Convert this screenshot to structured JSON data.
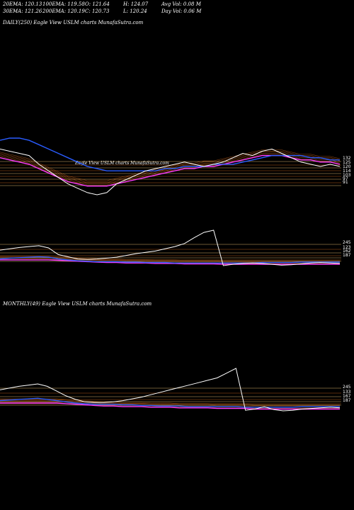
{
  "header": {
    "row1": [
      "20EMA: 120.13",
      "100EMA: 119.58",
      "O: 121.64",
      "H: 124.07",
      "Avg Vol: 0.08  M"
    ],
    "row2": [
      "30EMA: 121.26",
      "200EMA: 120.19",
      "C: 120.73",
      "L: 120.24",
      "Day Vol: 0.06  M"
    ]
  },
  "captions": {
    "daily": "DAILY(250) Eagle   View  USLM charts MunafaSutra.com",
    "overlay": "Eagle   View  USLM charts MunafaSutra.com",
    "monthly": "MONTHLY(49) Eagle   View  USLM charts MunafaSutra.com"
  },
  "colors": {
    "price": "#ffffff",
    "ema_fast": "#2a5cff",
    "ema_slow": "#ff3cff",
    "band": "#d2691e",
    "level_line": "#ffd27f",
    "background": "#000000"
  },
  "chart_data": [
    {
      "type": "line",
      "title": "DAILY(250) Eagle View USLM charts MunafaSutra.com",
      "right_tick_labels": [
        "132",
        "125",
        "120",
        "114",
        "103",
        "97",
        "91"
      ],
      "series": [
        {
          "values": [
            128,
            127,
            126,
            125,
            121,
            118,
            115,
            112,
            110,
            108,
            107,
            108,
            112,
            114,
            116,
            118,
            119,
            120,
            121,
            122,
            121,
            120,
            121,
            122,
            124,
            126,
            125,
            127,
            128,
            126,
            124,
            122,
            121,
            120,
            121,
            120
          ]
        },
        {
          "values": [
            132,
            133,
            133,
            132,
            130,
            128,
            126,
            124,
            122,
            120,
            119,
            118,
            118,
            118,
            118,
            118,
            118,
            119,
            119,
            120,
            120,
            120,
            121,
            121,
            121,
            122,
            123,
            124,
            125,
            125,
            125,
            125,
            124,
            124,
            123,
            123
          ]
        },
        {
          "values": [
            124,
            123,
            122,
            121,
            119,
            117,
            115,
            113,
            112,
            111,
            111,
            111,
            112,
            113,
            114,
            115,
            116,
            117,
            118,
            119,
            119,
            120,
            120,
            121,
            122,
            123,
            124,
            125,
            125,
            125,
            124,
            123,
            123,
            122,
            122,
            121
          ]
        }
      ]
    },
    {
      "type": "line",
      "title": "",
      "right_tick_labels": [
        "245",
        "123",
        "162",
        "187"
      ],
      "series": [
        {
          "values": [
            30,
            33,
            36,
            38,
            40,
            35,
            20,
            15,
            10,
            9,
            10,
            12,
            14,
            18,
            22,
            25,
            28,
            33,
            38,
            45,
            58,
            70,
            75,
            -5,
            -2,
            0,
            1,
            0,
            -2,
            -4,
            -3,
            -1,
            1,
            2,
            1,
            0
          ]
        },
        {
          "values": [
            10,
            12,
            13,
            14,
            15,
            14,
            10,
            8,
            6,
            5,
            4,
            4,
            4,
            3,
            3,
            2,
            2,
            2,
            1,
            1,
            1,
            1,
            1,
            1,
            1,
            1,
            1,
            2,
            2,
            2,
            2,
            3,
            3,
            3,
            3,
            3
          ]
        },
        {
          "values": [
            8,
            8,
            8,
            8,
            8,
            8,
            7,
            6,
            5,
            4,
            3,
            2,
            2,
            1,
            1,
            1,
            0,
            0,
            0,
            -1,
            -1,
            -1,
            -1,
            -2,
            -2,
            -2,
            -2,
            -2,
            -2,
            -2,
            -2,
            -2,
            -2,
            -2,
            -2,
            -2
          ]
        }
      ]
    },
    {
      "type": "line",
      "title": "MONTHLY(49) Eagle View USLM charts MunafaSutra.com",
      "right_tick_labels": [
        "245",
        "133",
        "167",
        "187"
      ],
      "series": [
        {
          "values": [
            30,
            33,
            36,
            38,
            40,
            36,
            28,
            20,
            14,
            10,
            9,
            9,
            10,
            12,
            15,
            18,
            22,
            26,
            30,
            34,
            38,
            42,
            46,
            50,
            58,
            66,
            -4,
            -2,
            2,
            -3,
            -5,
            -4,
            -2,
            -1,
            0,
            1,
            0
          ]
        },
        {
          "values": [
            12,
            13,
            14,
            15,
            16,
            14,
            12,
            10,
            8,
            7,
            6,
            6,
            6,
            5,
            5,
            4,
            4,
            3,
            3,
            3,
            2,
            2,
            2,
            2,
            2,
            2,
            1,
            1,
            1,
            1,
            1,
            1,
            2,
            2,
            2,
            2,
            2
          ]
        },
        {
          "values": [
            8,
            8,
            8,
            8,
            8,
            8,
            8,
            7,
            6,
            5,
            4,
            3,
            3,
            2,
            2,
            2,
            1,
            1,
            1,
            0,
            0,
            0,
            0,
            -1,
            -1,
            -1,
            -1,
            -2,
            -2,
            -2,
            -2,
            -2,
            -2,
            -2,
            -2,
            -2,
            -2
          ]
        }
      ]
    }
  ]
}
